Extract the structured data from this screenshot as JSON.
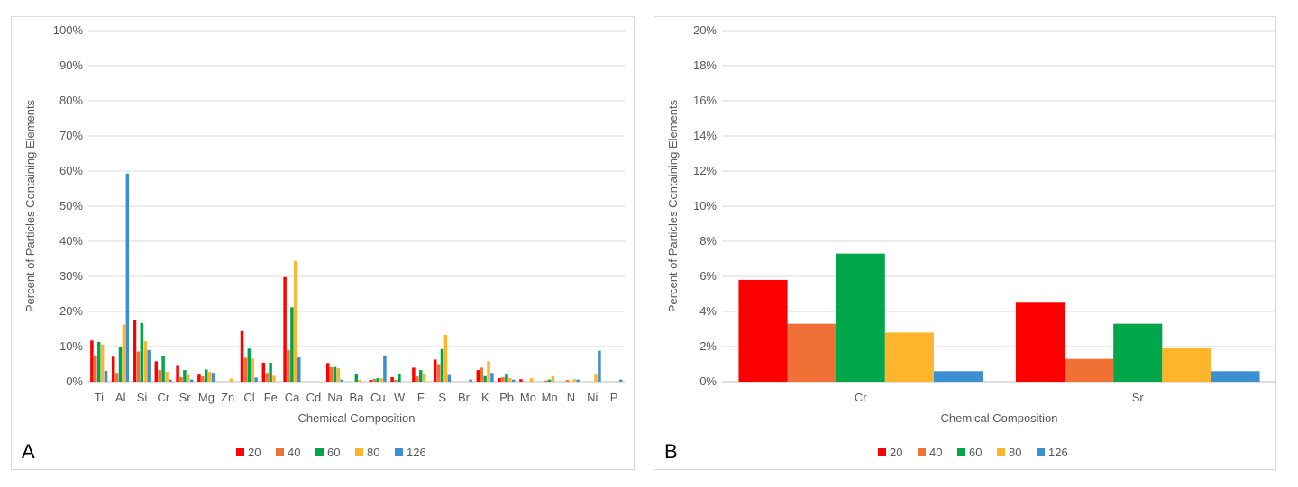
{
  "colors": {
    "s20": "#ff0000",
    "s40": "#f07035",
    "s60": "#00a64a",
    "s80": "#ffb52b",
    "s126": "#3c8fd0",
    "grid": "#d9d9d9",
    "text": "#595959"
  },
  "chart_data": [
    {
      "panel_label": "A",
      "type": "bar",
      "title": "",
      "xlabel": "Chemical Composition",
      "ylabel": "Percent of Particles Containing Elements",
      "ylim": [
        0,
        100
      ],
      "yticks": [
        "0%",
        "10%",
        "20%",
        "30%",
        "40%",
        "50%",
        "60%",
        "70%",
        "80%",
        "90%",
        "100%"
      ],
      "grid": true,
      "legend": "bottom",
      "categories": [
        "Ti",
        "Al",
        "Si",
        "Cr",
        "Sr",
        "Mg",
        "Zn",
        "Cl",
        "Fe",
        "Ca",
        "Cd",
        "Na",
        "Ba",
        "Cu",
        "W",
        "F",
        "S",
        "Br",
        "K",
        "Pb",
        "Mo",
        "Mn",
        "N",
        "Ni",
        "P"
      ],
      "series": [
        {
          "name": "20",
          "values": [
            11.7,
            7.1,
            17.5,
            5.8,
            4.5,
            2.0,
            0,
            14.4,
            5.4,
            29.8,
            0,
            5.3,
            0,
            0.5,
            1.3,
            4.0,
            6.3,
            0,
            3.3,
            1.0,
            0.7,
            0,
            0,
            0,
            0
          ]
        },
        {
          "name": "40",
          "values": [
            7.5,
            2.5,
            8.6,
            3.3,
            1.3,
            1.5,
            0,
            6.8,
            2.5,
            9.0,
            0,
            4.1,
            0,
            0.8,
            0.5,
            1.5,
            5.0,
            0,
            4.0,
            1.3,
            0,
            0.3,
            0.5,
            0,
            0
          ]
        },
        {
          "name": "60",
          "values": [
            11.3,
            10.0,
            16.7,
            7.3,
            3.3,
            3.5,
            0,
            9.4,
            5.4,
            21.2,
            0,
            4.2,
            2.1,
            1.0,
            2.2,
            3.3,
            9.3,
            0,
            1.6,
            2.0,
            0,
            0.6,
            0,
            0,
            0
          ]
        },
        {
          "name": "80",
          "values": [
            10.6,
            16.3,
            11.5,
            2.8,
            1.9,
            2.8,
            0.9,
            6.6,
            1.7,
            34.4,
            0,
            3.8,
            0.5,
            1.0,
            0,
            2.2,
            13.4,
            0,
            5.8,
            1.0,
            1.0,
            1.6,
            0.7,
            2.0,
            0
          ]
        },
        {
          "name": "126",
          "values": [
            3.1,
            59.3,
            9.0,
            0.6,
            0.6,
            2.5,
            0,
            1.2,
            0,
            6.9,
            0,
            0.6,
            0,
            7.5,
            0,
            0,
            1.9,
            0.6,
            2.5,
            0.6,
            0,
            0,
            0.6,
            8.8,
            0.6
          ]
        }
      ]
    },
    {
      "panel_label": "B",
      "type": "bar",
      "title": "",
      "xlabel": "Chemical Composition",
      "ylabel": "Percent of Particles Containing Elements",
      "ylim": [
        0,
        20
      ],
      "yticks": [
        "0%",
        "2%",
        "4%",
        "6%",
        "8%",
        "10%",
        "12%",
        "14%",
        "16%",
        "18%",
        "20%"
      ],
      "grid": true,
      "legend": "bottom",
      "categories": [
        "Cr",
        "Sr"
      ],
      "series": [
        {
          "name": "20",
          "values": [
            5.8,
            4.5
          ]
        },
        {
          "name": "40",
          "values": [
            3.3,
            1.3
          ]
        },
        {
          "name": "60",
          "values": [
            7.3,
            3.3
          ]
        },
        {
          "name": "80",
          "values": [
            2.8,
            1.9
          ]
        },
        {
          "name": "126",
          "values": [
            0.6,
            0.6
          ]
        }
      ]
    }
  ]
}
